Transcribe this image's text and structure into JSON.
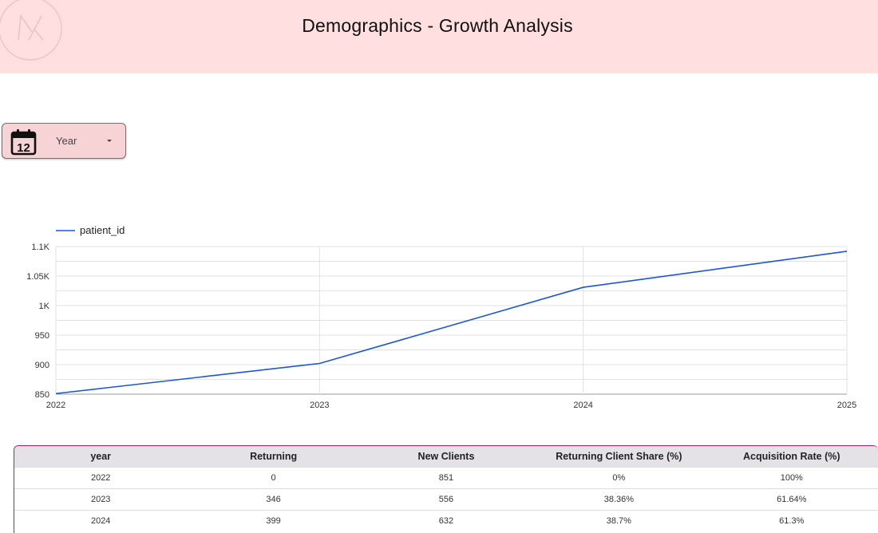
{
  "header": {
    "title": "Demographics - Growth Analysis",
    "background": "#ffdfdf",
    "logo_icon": "monogram-logo-icon"
  },
  "filter": {
    "label": "Year",
    "icon": "calendar-icon",
    "calendar_day": "12",
    "background": "#f8d3d6"
  },
  "chart_data": {
    "type": "line",
    "x": [
      "2022",
      "2023",
      "2024",
      "2025"
    ],
    "series": [
      {
        "name": "patient_id",
        "values": [
          851,
          902,
          1031,
          1092
        ],
        "color": "#1a56db"
      }
    ],
    "ylim": [
      850,
      1100
    ],
    "yticks": [
      {
        "value": 850,
        "label": "850"
      },
      {
        "value": 900,
        "label": "900"
      },
      {
        "value": 950,
        "label": "950"
      },
      {
        "value": 1000,
        "label": "1K"
      },
      {
        "value": 1050,
        "label": "1.05K"
      },
      {
        "value": 1100,
        "label": "1.1K"
      }
    ],
    "minor_grid_step": 25,
    "grid": true,
    "legend_position": "top-left",
    "title": "",
    "xlabel": "",
    "ylabel": ""
  },
  "table": {
    "border_color": "#c2185b",
    "columns": [
      "year",
      "Returning",
      "New Clients",
      "Returning Client Share (%)",
      "Acquisition Rate (%)"
    ],
    "rows": [
      [
        "2022",
        "0",
        "851",
        "0%",
        "100%"
      ],
      [
        "2023",
        "346",
        "556",
        "38.36%",
        "61.64%"
      ],
      [
        "2024",
        "399",
        "632",
        "38.7%",
        "61.3%"
      ]
    ]
  }
}
